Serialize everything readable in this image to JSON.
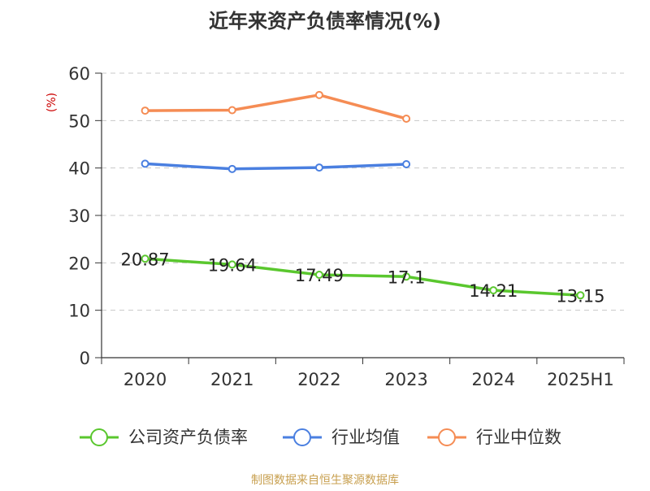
{
  "chart_data": {
    "type": "line",
    "title": "近年来资产负债率情况(%)",
    "ylabel": "(%)",
    "xlabel": "",
    "categories": [
      "2020",
      "2021",
      "2022",
      "2023",
      "2024",
      "2025H1"
    ],
    "ylim": [
      0,
      60
    ],
    "yticks": [
      0,
      10,
      20,
      30,
      40,
      50,
      60
    ],
    "grid": true,
    "legend_position": "bottom",
    "series": [
      {
        "name": "公司资产负债率",
        "color": "#5ac72e",
        "values": [
          20.87,
          19.64,
          17.49,
          17.1,
          14.21,
          13.15
        ],
        "labels": [
          "20.87",
          "19.64",
          "17.49",
          "17.1",
          "14.21",
          "13.15"
        ]
      },
      {
        "name": "行业均值",
        "color": "#4a7fe0",
        "values": [
          40.9,
          39.8,
          40.1,
          40.8,
          null,
          null
        ]
      },
      {
        "name": "行业中位数",
        "color": "#f58c54",
        "values": [
          52.1,
          52.2,
          55.4,
          50.4,
          null,
          null
        ]
      }
    ],
    "source": "制图数据来自恒生聚源数据库"
  }
}
